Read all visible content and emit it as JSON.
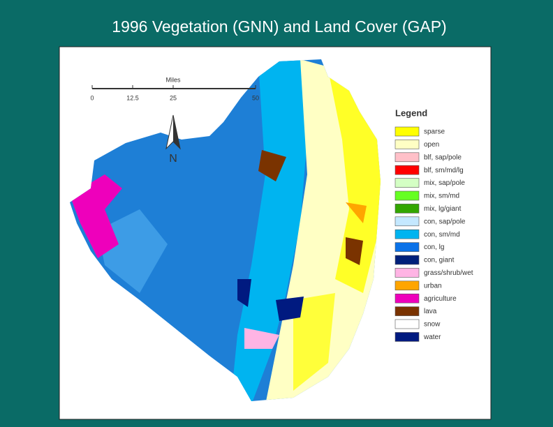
{
  "title": "1996 Vegetation (GNN) and Land Cover (GAP)",
  "scale_bar": {
    "unit": "Miles",
    "ticks": [
      "0",
      "12.5",
      "25",
      "50"
    ]
  },
  "north_label": "N",
  "legend": {
    "title": "Legend",
    "items": [
      {
        "label": "sparse",
        "color": "#ffff00"
      },
      {
        "label": "open",
        "color": "#ffffc4"
      },
      {
        "label": "blf, sap/pole",
        "color": "#ffc0c8"
      },
      {
        "label": "blf, sm/md/lg",
        "color": "#ff0000"
      },
      {
        "label": "mix, sap/pole",
        "color": "#d4ffc4"
      },
      {
        "label": "mix, sm/md",
        "color": "#66ff22"
      },
      {
        "label": "mix, lg/giant",
        "color": "#33a600"
      },
      {
        "label": "con, sap/pole",
        "color": "#c4e8ff"
      },
      {
        "label": "con, sm/md",
        "color": "#00b4f0"
      },
      {
        "label": "con, lg",
        "color": "#0a72e8"
      },
      {
        "label": "con, giant",
        "color": "#00207a"
      },
      {
        "label": "grass/shrub/wet",
        "color": "#ffb4e4"
      },
      {
        "label": "urban",
        "color": "#ffa500"
      },
      {
        "label": "agriculture",
        "color": "#ee00bb"
      },
      {
        "label": "lava",
        "color": "#7a3300"
      },
      {
        "label": "snow",
        "color": "#ffffff"
      },
      {
        "label": "water",
        "color": "#001a80"
      }
    ]
  }
}
